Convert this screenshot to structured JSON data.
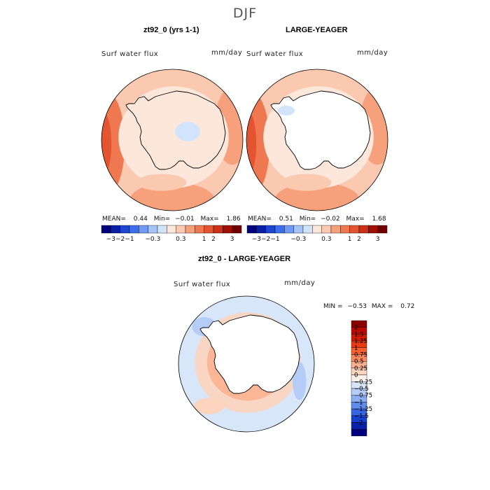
{
  "season": "DJF",
  "panels": {
    "left": {
      "title": "zt92_0 (yrs 1-1)",
      "variable": "Surf water flux",
      "units": "mm/day",
      "mean_label": "MEAN=",
      "mean": "0.44",
      "min_label": "Min=",
      "min": "−0.01",
      "max_label": "Max=",
      "max": "1.86"
    },
    "right": {
      "title": "LARGE-YEAGER",
      "variable": "Surf water flux",
      "units": "mm/day",
      "mean_label": "MEAN=",
      "mean": "0.51",
      "min_label": "Min=",
      "min": "−0.02",
      "max_label": "Max=",
      "max": "1.68"
    },
    "diff": {
      "title": "zt92_0 - LARGE-YEAGER",
      "variable": "Surf water flux",
      "units": "mm/day",
      "min_label": "MIN =",
      "min": "−0.53",
      "max_label": "MAX =",
      "max": "0.72"
    }
  },
  "horizontal_colorbar": {
    "colors": [
      "#00007f",
      "#0a1fa8",
      "#1e46d2",
      "#3c6ef0",
      "#6f9af6",
      "#a4c4fa",
      "#d2e4fc",
      "#fde6da",
      "#fbc8b0",
      "#f7a07c",
      "#f07850",
      "#e45430",
      "#cc3018",
      "#a01006",
      "#700000"
    ],
    "ticks": [
      "−3",
      "−2",
      "−1",
      "−0.3",
      "0.3",
      "1",
      "2",
      "3"
    ]
  },
  "vertical_colorbar": {
    "colors": [
      "#8a0000",
      "#b80a00",
      "#d41c00",
      "#ea3a12",
      "#f5602e",
      "#f98a5e",
      "#fbb08e",
      "#fdd4be",
      "#fff2ea",
      "#d8e6fa",
      "#b4ccf6",
      "#8aaef0",
      "#5e8cea",
      "#3466e2",
      "#1440d0",
      "#0a22a8",
      "#00007f"
    ],
    "labels": [
      "2",
      "1.5",
      "1.25",
      "1",
      "0.75",
      "0.5",
      "0.25",
      "0",
      "−0.25",
      "−0.5",
      "−0.75",
      "−1",
      "−1.25",
      "−1.5",
      "−2"
    ]
  },
  "map_colors": {
    "ocean_light": "#fde6da",
    "ocean_mid": "#fbc8b0",
    "ocean_warm": "#f7a07c",
    "ocean_hot": "#f07850",
    "ocean_hotter": "#e45430",
    "ice_blue": "#d2e4fc",
    "diff_base": "#d8e6fa",
    "diff_pos": "#fdd4be",
    "diff_pos2": "#fbb08e",
    "diff_neg": "#b4ccf6",
    "land": "#ffffff"
  }
}
